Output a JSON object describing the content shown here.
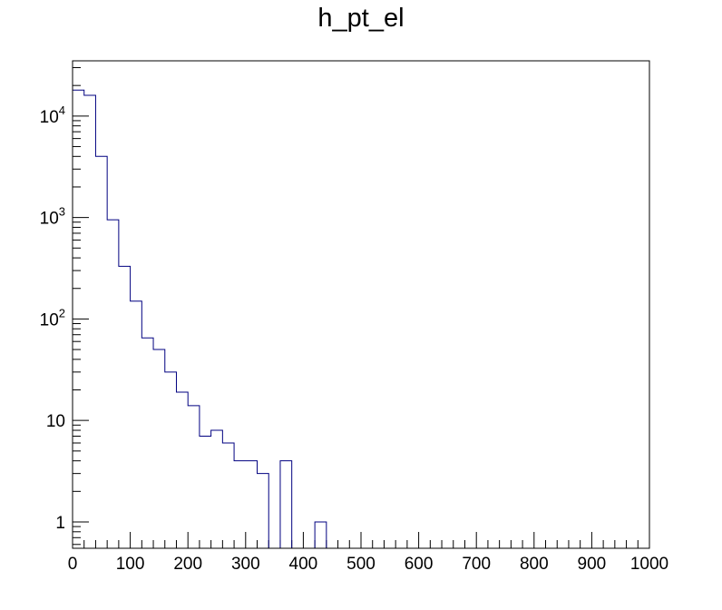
{
  "chart_data": {
    "type": "histogram",
    "title": "h_pt_el",
    "xlabel": "",
    "ylabel": "",
    "xlim": [
      0,
      1000
    ],
    "ylim": [
      0.55,
      35000
    ],
    "yscale": "log",
    "grid": false,
    "line_color": "#000080",
    "bin_edges": [
      0,
      20,
      40,
      60,
      80,
      100,
      120,
      140,
      160,
      180,
      200,
      220,
      240,
      260,
      280,
      300,
      320,
      340,
      360,
      380,
      400,
      420,
      440,
      460,
      480,
      500,
      520,
      540,
      560,
      580,
      600,
      620,
      640,
      660,
      680,
      700,
      720,
      740,
      760,
      780,
      800,
      820,
      840,
      860,
      880,
      900,
      920,
      940,
      960,
      980,
      1000
    ],
    "values": [
      18000,
      16000,
      4000,
      950,
      330,
      150,
      65,
      50,
      30,
      19,
      14,
      7,
      8,
      6,
      4,
      4,
      3,
      0,
      4,
      0,
      0,
      1,
      0,
      0,
      0,
      0,
      0,
      0,
      0,
      0,
      0,
      0,
      0,
      0,
      0,
      0,
      0,
      0,
      0,
      0,
      0,
      0,
      0,
      0,
      0,
      0,
      0,
      0,
      0,
      0
    ],
    "x_tick_labels": [
      "0",
      "100",
      "200",
      "300",
      "400",
      "500",
      "600",
      "700",
      "800",
      "900",
      "1000"
    ],
    "y_tick_labels": [
      {
        "value": 1,
        "base": "1",
        "exp": ""
      },
      {
        "value": 10,
        "base": "10",
        "exp": ""
      },
      {
        "value": 100,
        "base": "10",
        "exp": "2"
      },
      {
        "value": 1000,
        "base": "10",
        "exp": "3"
      },
      {
        "value": 10000,
        "base": "10",
        "exp": "4"
      }
    ]
  }
}
